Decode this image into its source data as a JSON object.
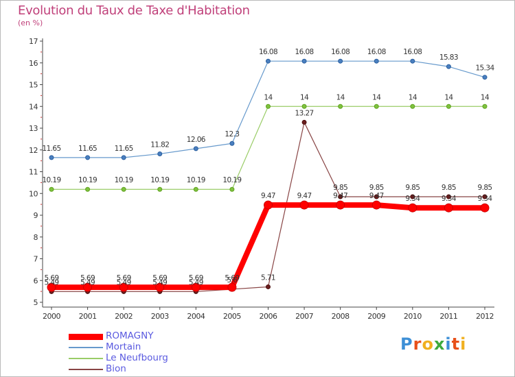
{
  "header": {
    "title": "Evolution du Taux de Taxe d'Habitation",
    "subtitle": "(en %)"
  },
  "logo": {
    "text": "Proxiti",
    "letters": [
      "P",
      "r",
      "o",
      "x",
      "i",
      "t",
      "i"
    ],
    "colors": [
      "#3d8fd6",
      "#e8501a",
      "#f0b020",
      "#3daa3d",
      "#3d8fd6",
      "#e8501a",
      "#f0b020"
    ]
  },
  "chart_data": {
    "type": "line",
    "title": "Evolution du Taux de Taxe d'Habitation",
    "subtitle": "(en %)",
    "xlabel": "",
    "ylabel": "",
    "x": [
      "2000",
      "2001",
      "2002",
      "2003",
      "2004",
      "2005",
      "2006",
      "2007",
      "2008",
      "2009",
      "2010",
      "2011",
      "2012"
    ],
    "yticks": [
      5,
      6,
      7,
      8,
      9,
      10,
      11,
      12,
      13,
      14,
      15,
      16,
      17
    ],
    "ylim": [
      5,
      17
    ],
    "grid": false,
    "legend": "bottom-left",
    "series": [
      {
        "name": "ROMAGNY",
        "color": "#ff0000",
        "values": [
          5.69,
          5.69,
          5.69,
          5.69,
          5.69,
          5.69,
          9.47,
          9.47,
          9.47,
          9.47,
          9.34,
          9.34,
          9.34
        ],
        "labels": [
          "5.69",
          "5.69",
          "5.69",
          "5.69",
          "5.69",
          "5.69",
          "9.47",
          "9.47",
          "9.47",
          "9.47",
          "9.34",
          "9.34",
          "9.34"
        ]
      },
      {
        "name": "Mortain",
        "color": "#6699cc",
        "values": [
          11.65,
          11.65,
          11.65,
          11.82,
          12.06,
          12.3,
          16.08,
          16.08,
          16.08,
          16.08,
          16.08,
          15.83,
          15.34
        ],
        "labels": [
          "11.65",
          "11.65",
          "11.65",
          "11.82",
          "12.06",
          "12.3",
          "16.08",
          "16.08",
          "16.08",
          "16.08",
          "16.08",
          "15.83",
          "15.34"
        ]
      },
      {
        "name": "Le Neufbourg",
        "color": "#99cc66",
        "values": [
          10.19,
          10.19,
          10.19,
          10.19,
          10.19,
          10.19,
          14,
          14,
          14,
          14,
          14,
          14,
          14
        ],
        "labels": [
          "10.19",
          "10.19",
          "10.19",
          "10.19",
          "10.19",
          "10.19",
          "14",
          "14",
          "14",
          "14",
          "14",
          "14",
          "14"
        ]
      },
      {
        "name": "Bion",
        "color": "#884444",
        "values": [
          5.49,
          5.49,
          5.49,
          5.49,
          5.49,
          5.6,
          5.71,
          13.27,
          9.85,
          9.85,
          9.85,
          9.85,
          9.85
        ],
        "labels": [
          "5.49",
          "5.49",
          "5.49",
          "5.49",
          "5.49",
          "5.6",
          "5.71",
          "13.27",
          "9.85",
          "9.85",
          "9.85",
          "9.85",
          "9.85"
        ]
      }
    ]
  }
}
